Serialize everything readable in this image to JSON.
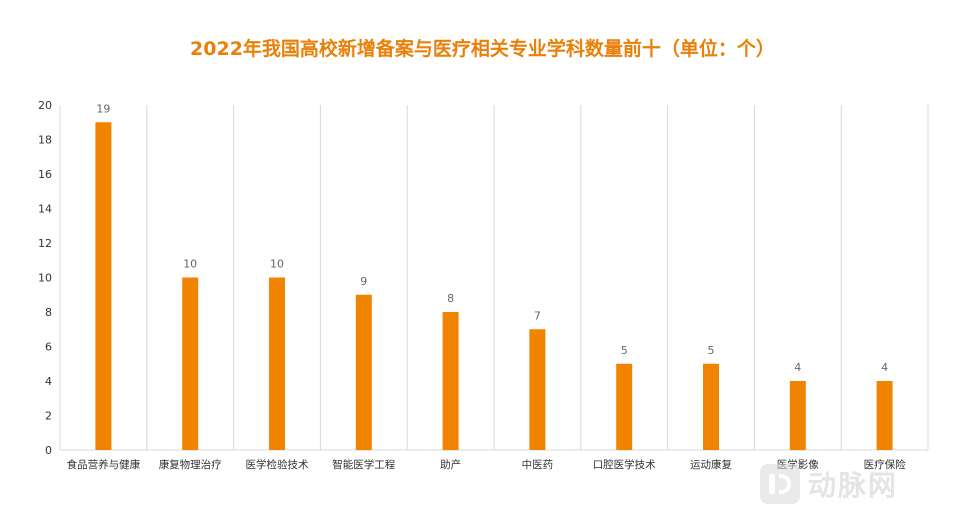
{
  "colors": {
    "title": "#E8800A",
    "bar": "#F08300",
    "grid": "#D9D9D9",
    "tick_text": "#333333",
    "label_text": "#666666"
  },
  "watermark": {
    "text": "动脉网"
  },
  "chart_data": {
    "type": "bar",
    "title": "2022年我国高校新增备案与医疗相关专业学科数量前十（单位：个）",
    "xlabel": "",
    "ylabel": "",
    "ylim": [
      0,
      20
    ],
    "yticks": [
      0,
      2,
      4,
      6,
      8,
      10,
      12,
      14,
      16,
      18,
      20
    ],
    "grid": "vertical",
    "data_labels": true,
    "categories": [
      "食品营养与健康",
      "康复物理治疗",
      "医学检验技术",
      "智能医学工程",
      "助产",
      "中医药",
      "口腔医学技术",
      "运动康复",
      "医学影像",
      "医疗保险"
    ],
    "values": [
      19,
      10,
      10,
      9,
      8,
      7,
      5,
      5,
      4,
      4
    ]
  }
}
